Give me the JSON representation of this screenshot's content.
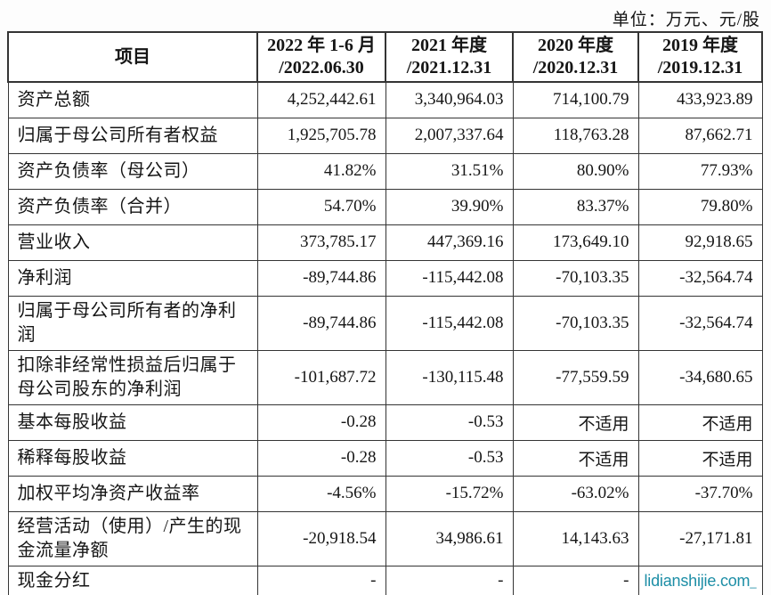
{
  "page": {
    "unit_note": "单位：万元、元/股",
    "background": "#fdfdfd",
    "text_color": "#151515",
    "border_color": "#343434"
  },
  "watermark": {
    "text": "lidianshijie.com",
    "cursor": "_",
    "color": "#1d8ea6"
  },
  "table": {
    "headers": [
      {
        "line1": "项目",
        "line2": ""
      },
      {
        "line1": "2022 年 1-6 月",
        "line2": "/2022.06.30"
      },
      {
        "line1": "2021 年度",
        "line2": "/2021.12.31"
      },
      {
        "line1": "2020 年度",
        "line2": "/2020.12.31"
      },
      {
        "line1": "2019 年度",
        "line2": "/2019.12.31"
      }
    ],
    "rows": [
      {
        "label": "资产总额",
        "values": [
          "4,252,442.61",
          "3,340,964.03",
          "714,100.79",
          "433,923.89"
        ]
      },
      {
        "label": "归属于母公司所有者权益",
        "values": [
          "1,925,705.78",
          "2,007,337.64",
          "118,763.28",
          "87,662.71"
        ]
      },
      {
        "label": "资产负债率（母公司）",
        "values": [
          "41.82%",
          "31.51%",
          "80.90%",
          "77.93%"
        ]
      },
      {
        "label": "资产负债率（合并）",
        "values": [
          "54.70%",
          "39.90%",
          "83.37%",
          "79.80%"
        ]
      },
      {
        "label": "营业收入",
        "values": [
          "373,785.17",
          "447,369.16",
          "173,649.10",
          "92,918.65"
        ]
      },
      {
        "label": "净利润",
        "values": [
          "-89,744.86",
          "-115,442.08",
          "-70,103.35",
          "-32,564.74"
        ]
      },
      {
        "label": "归属于母公司所有者的净利润",
        "values": [
          "-89,744.86",
          "-115,442.08",
          "-70,103.35",
          "-32,564.74"
        ]
      },
      {
        "label": "扣除非经常性损益后归属于母公司股东的净利润",
        "values": [
          "-101,687.72",
          "-130,115.48",
          "-77,559.59",
          "-34,680.65"
        ]
      },
      {
        "label": "基本每股收益",
        "values": [
          "-0.28",
          "-0.53",
          "不适用",
          "不适用"
        ]
      },
      {
        "label": "稀释每股收益",
        "values": [
          "-0.28",
          "-0.53",
          "不适用",
          "不适用"
        ]
      },
      {
        "label": "加权平均净资产收益率",
        "values": [
          "-4.56%",
          "-15.72%",
          "-63.02%",
          "-37.70%"
        ]
      },
      {
        "label": "经营活动（使用）/产生的现金流量净额",
        "values": [
          "-20,918.54",
          "34,986.61",
          "14,143.63",
          "-27,171.81"
        ]
      },
      {
        "label": "现金分红",
        "values": [
          "-",
          "-",
          "-",
          ""
        ]
      }
    ]
  }
}
